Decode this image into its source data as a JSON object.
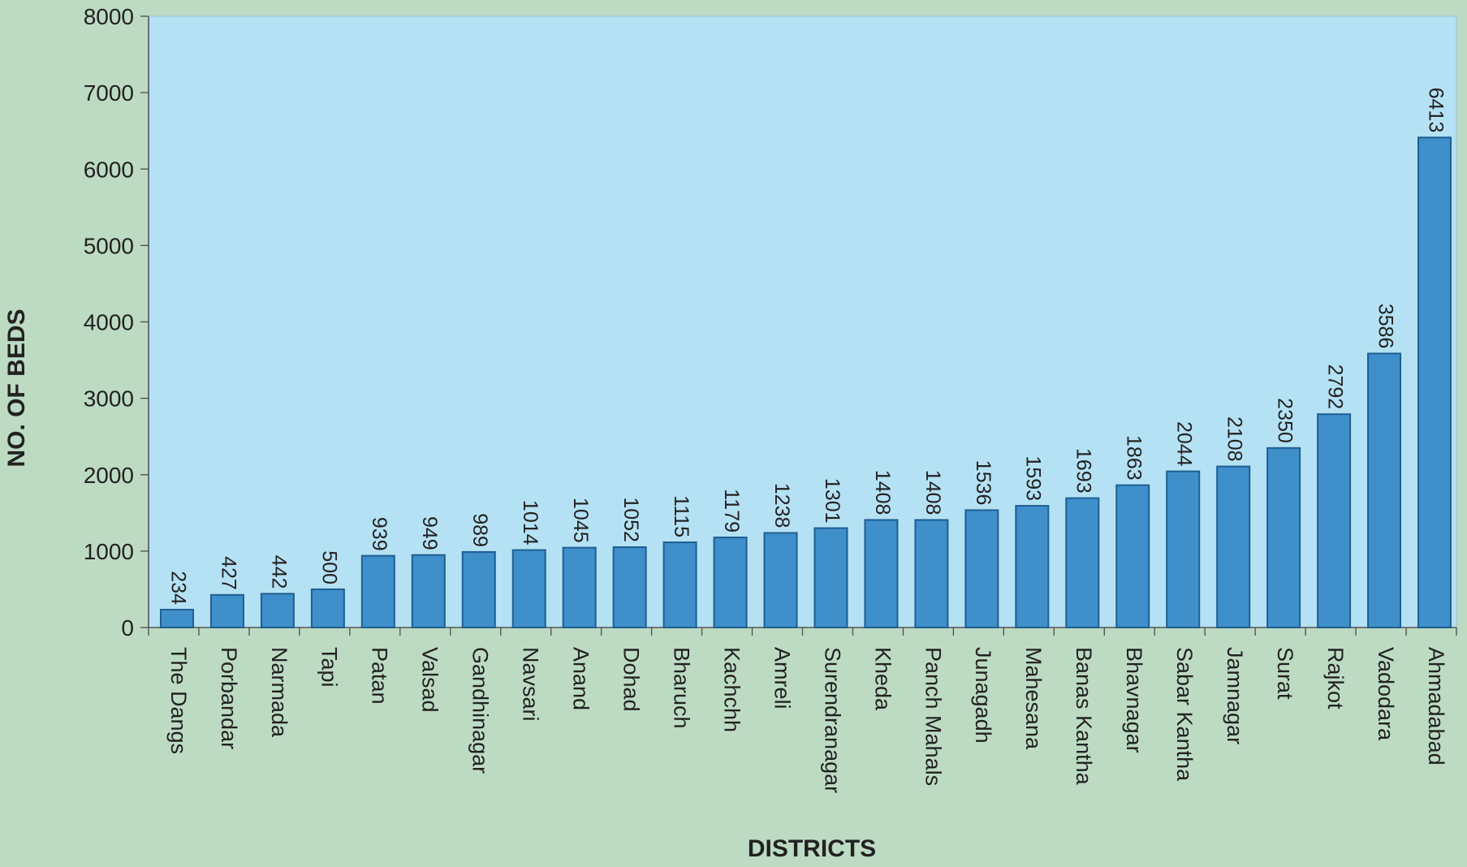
{
  "chart_data": {
    "type": "bar",
    "xlabel": "DISTRICTS",
    "ylabel": "NO. OF BEDS",
    "ylim": [
      0,
      8000
    ],
    "yticks": [
      0,
      1000,
      2000,
      3000,
      4000,
      5000,
      6000,
      7000,
      8000
    ],
    "grid": false,
    "categories": [
      "The Dangs",
      "Porbandar",
      "Narmada",
      "Tapi",
      "Patan",
      "Valsad",
      "Gandhinagar",
      "Navsari",
      "Anand",
      "Dohad",
      "Bharuch",
      "Kachchh",
      "Amreli",
      "Surendranagar",
      "Kheda",
      "Panch Mahals",
      "Junagadh",
      "Mahesana",
      "Banas Kantha",
      "Bhavnagar",
      "Sabar Kantha",
      "Jamnagar",
      "Surat",
      "Rajkot",
      "Vadodara",
      "Ahmadabad"
    ],
    "values": [
      234,
      427,
      442,
      500,
      939,
      949,
      989,
      1014,
      1045,
      1052,
      1115,
      1179,
      1238,
      1301,
      1408,
      1408,
      1536,
      1593,
      1693,
      1863,
      2044,
      2108,
      2350,
      2792,
      3586,
      6413
    ],
    "data_labels": [
      "234",
      "427",
      "442",
      "500",
      "939",
      "949",
      "989",
      "1014",
      "1045",
      "1052",
      "1115",
      "1179",
      "1238",
      "1301",
      "1408",
      "1408",
      "1536",
      "1593",
      "1693",
      "1863",
      "2044",
      "2108",
      "2350",
      "2792",
      "3586",
      "6413"
    ]
  },
  "colors": {
    "page_background": "#bddbc3",
    "plot_background": "#b5e1f4",
    "bar_fill": "#3f8fcb",
    "bar_stroke": "#1f5f91",
    "axis": "#555555",
    "text": "#222222"
  }
}
